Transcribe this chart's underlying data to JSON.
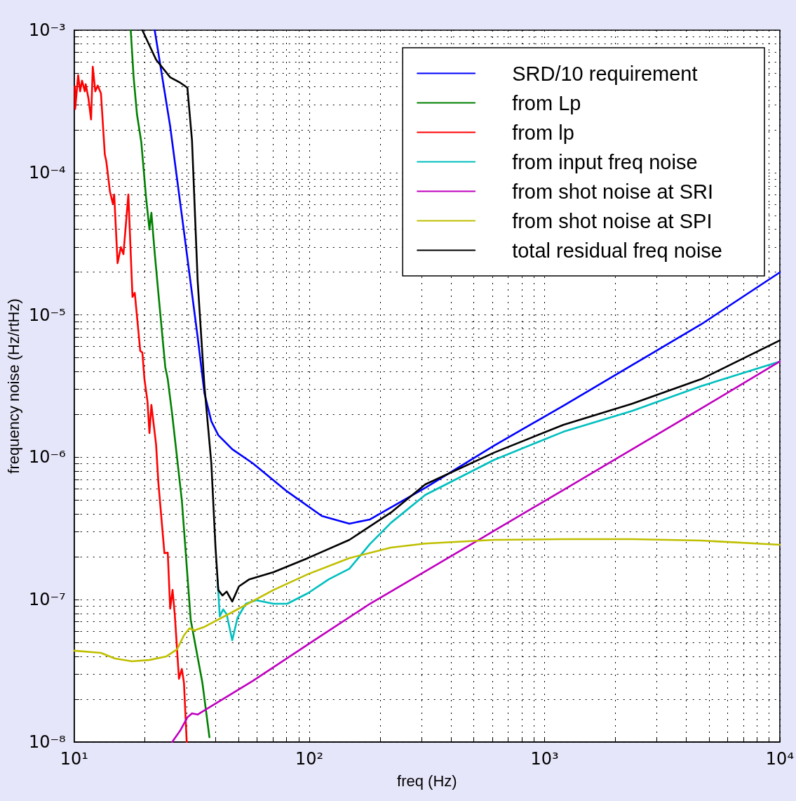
{
  "chart_data": {
    "type": "line",
    "xlabel": "freq (Hz)",
    "ylabel": "frequency noise (Hz/rtHz)",
    "log": "xy",
    "grid": true,
    "legend": "top right",
    "marker": "none",
    "line_style": "solid",
    "xlim": [
      10,
      10000
    ],
    "ylim": [
      1e-08,
      0.001
    ],
    "xticks": [
      {
        "value": 10,
        "label": "10¹"
      },
      {
        "value": 20,
        "label": null
      },
      {
        "value": 30,
        "label": null
      },
      {
        "value": 40,
        "label": null
      },
      {
        "value": 50,
        "label": null
      },
      {
        "value": 60,
        "label": null
      },
      {
        "value": 70,
        "label": null
      },
      {
        "value": 80,
        "label": null
      },
      {
        "value": 90,
        "label": null
      },
      {
        "value": 100,
        "label": "10²"
      },
      {
        "value": 200,
        "label": null
      },
      {
        "value": 300,
        "label": null
      },
      {
        "value": 400,
        "label": null
      },
      {
        "value": 500,
        "label": null
      },
      {
        "value": 600,
        "label": null
      },
      {
        "value": 700,
        "label": null
      },
      {
        "value": 800,
        "label": null
      },
      {
        "value": 900,
        "label": null
      },
      {
        "value": 1000,
        "label": "10³"
      },
      {
        "value": 2000,
        "label": null
      },
      {
        "value": 3000,
        "label": null
      },
      {
        "value": 4000,
        "label": null
      },
      {
        "value": 5000,
        "label": null
      },
      {
        "value": 6000,
        "label": null
      },
      {
        "value": 7000,
        "label": null
      },
      {
        "value": 8000,
        "label": null
      },
      {
        "value": 9000,
        "label": null
      },
      {
        "value": 10000,
        "label": "10⁴"
      }
    ],
    "yticks": [
      {
        "value": 1e-08,
        "label": "10⁻⁸"
      },
      {
        "value": 2e-08,
        "label": null
      },
      {
        "value": 3e-08,
        "label": null
      },
      {
        "value": 4e-08,
        "label": null
      },
      {
        "value": 5e-08,
        "label": null
      },
      {
        "value": 6e-08,
        "label": null
      },
      {
        "value": 7e-08,
        "label": null
      },
      {
        "value": 8e-08,
        "label": null
      },
      {
        "value": 9e-08,
        "label": null
      },
      {
        "value": 1e-07,
        "label": "10⁻⁷"
      },
      {
        "value": 2e-07,
        "label": null
      },
      {
        "value": 3e-07,
        "label": null
      },
      {
        "value": 4e-07,
        "label": null
      },
      {
        "value": 5e-07,
        "label": null
      },
      {
        "value": 6e-07,
        "label": null
      },
      {
        "value": 7e-07,
        "label": null
      },
      {
        "value": 8e-07,
        "label": null
      },
      {
        "value": 9e-07,
        "label": null
      },
      {
        "value": 1e-06,
        "label": "10⁻⁶"
      },
      {
        "value": 2e-06,
        "label": null
      },
      {
        "value": 3e-06,
        "label": null
      },
      {
        "value": 4e-06,
        "label": null
      },
      {
        "value": 5e-06,
        "label": null
      },
      {
        "value": 6e-06,
        "label": null
      },
      {
        "value": 7e-06,
        "label": null
      },
      {
        "value": 8e-06,
        "label": null
      },
      {
        "value": 9e-06,
        "label": null
      },
      {
        "value": 1e-05,
        "label": "10⁻⁵"
      },
      {
        "value": 2e-05,
        "label": null
      },
      {
        "value": 3e-05,
        "label": null
      },
      {
        "value": 4e-05,
        "label": null
      },
      {
        "value": 5e-05,
        "label": null
      },
      {
        "value": 6e-05,
        "label": null
      },
      {
        "value": 7e-05,
        "label": null
      },
      {
        "value": 8e-05,
        "label": null
      },
      {
        "value": 9e-05,
        "label": null
      },
      {
        "value": 0.0001,
        "label": "10⁻⁴"
      },
      {
        "value": 0.0002,
        "label": null
      },
      {
        "value": 0.0003,
        "label": null
      },
      {
        "value": 0.0004,
        "label": null
      },
      {
        "value": 0.0005,
        "label": null
      },
      {
        "value": 0.0006,
        "label": null
      },
      {
        "value": 0.0007,
        "label": null
      },
      {
        "value": 0.0008,
        "label": null
      },
      {
        "value": 0.0009,
        "label": null
      },
      {
        "value": 0.001,
        "label": "10⁻³"
      }
    ],
    "series": [
      {
        "name": "SRD/10 requirement",
        "color": "#0000ff",
        "x": [
          22.0,
          25.6,
          29.3,
          33.5,
          35.8,
          38.3,
          41.0,
          47.0,
          57.5,
          80.5,
          113,
          148,
          181,
          311,
          611,
          1200,
          2360,
          4630,
          10000
        ],
        "values": [
          0.001,
          0.000211,
          3.85e-05,
          7e-06,
          2.82e-06,
          1.79e-06,
          1.43e-06,
          1.14e-06,
          9.07e-07,
          5.75e-07,
          3.87e-07,
          3.42e-07,
          3.66e-07,
          6.1e-07,
          1.21e-06,
          2.3e-06,
          4.45e-06,
          8.59e-06,
          1.99e-05
        ]
      },
      {
        "name": "from Lp",
        "color": "#008000",
        "x": [
          17.4,
          17.9,
          18.5,
          19.3,
          20.2,
          20.9,
          21.3,
          22.0,
          22.8,
          24.4,
          25.0,
          26.1,
          28.7,
          31.3,
          35.1,
          37.6
        ],
        "values": [
          0.001,
          0.000467,
          0.000256,
          0.000163,
          6.78e-05,
          3.98e-05,
          5.22e-05,
          2.73e-05,
          1.43e-05,
          4.3e-06,
          3.54e-06,
          2.01e-06,
          4.97e-07,
          7.21e-08,
          2.6e-08,
          1.08e-08
        ]
      },
      {
        "name": "from lp",
        "color": "#ff0000",
        "x": [
          10.07,
          10.1,
          10.4,
          10.6,
          10.8,
          11.1,
          11.2,
          11.5,
          11.8,
          12.0,
          12.3,
          12.6,
          13.0,
          13.5,
          13.7,
          14.2,
          14.6,
          14.8,
          15.3,
          15.8,
          16.2,
          17.0,
          17.7,
          18.1,
          19.1,
          19.5,
          19.9,
          20.5,
          20.9,
          21.3,
          22.3,
          22.8,
          24.2,
          25.0,
          25.6,
          26.2,
          26.8,
          27.9,
          28.7,
          29.3,
          30.1
        ],
        "values": [
          0.000403,
          0.00028,
          0.000483,
          0.000372,
          0.000442,
          0.000372,
          0.000417,
          0.000332,
          0.000236,
          0.000554,
          0.000372,
          0.000408,
          0.00036,
          0.000134,
          0.00012,
          7.34e-05,
          6.05e-05,
          7.02e-05,
          2.31e-05,
          2.99e-05,
          2.67e-05,
          7.02e-05,
          1.34e-05,
          1.43e-05,
          5.58e-06,
          5.45e-06,
          3.54e-06,
          2.47e-06,
          1.48e-06,
          2.33e-06,
          1.23e-06,
          6.67e-07,
          2.12e-07,
          2.14e-07,
          8.65e-08,
          1.17e-07,
          7.73e-08,
          2.78e-08,
          3.26e-08,
          2.6e-08,
          1e-08
        ]
      },
      {
        "name": "from input freq noise",
        "color": "#00bfbf",
        "x": [
          40.7,
          41.6,
          43.0,
          44.5,
          47.0,
          49.5,
          53.7,
          59.4,
          70.4,
          80.5,
          98.6,
          121,
          148,
          181,
          222,
          311,
          611,
          1200,
          2360,
          4630,
          10000
        ],
        "values": [
          1.39e-07,
          7.63e-08,
          8.55e-08,
          7.89e-08,
          5.19e-08,
          7.46e-08,
          9.36e-08,
          9.9e-08,
          9.36e-08,
          9.36e-08,
          1.11e-07,
          1.39e-07,
          1.65e-07,
          2.46e-07,
          3.46e-07,
          5.44e-07,
          9.6e-07,
          1.51e-06,
          2.12e-06,
          3.16e-06,
          4.71e-06
        ]
      },
      {
        "name": "from shot noise at SRI",
        "color": "#bf00bf",
        "x": [
          26.1,
          28.3,
          30.3,
          31.7,
          33.5,
          35.8,
          57.5,
          113,
          181,
          311,
          611,
          1200,
          2360,
          4630,
          10000
        ],
        "values": [
          1e-08,
          1.21e-08,
          1.49e-08,
          1.59e-08,
          1.56e-08,
          1.67e-08,
          2.69e-08,
          5.62e-08,
          9.36e-08,
          1.58e-07,
          3.05e-07,
          5.89e-07,
          1.14e-06,
          2.2e-06,
          4.71e-06
        ]
      },
      {
        "name": "from shot noise at SPI",
        "color": "#bfbf00",
        "x": [
          10,
          13.0,
          14.9,
          17.6,
          20.9,
          24.7,
          27.4,
          29.3,
          30.9,
          32.4,
          35.8,
          47.0,
          70.4,
          98.6,
          148,
          222,
          311,
          611,
          1200,
          2360,
          4630,
          10000
        ],
        "values": [
          4.38e-08,
          4.23e-08,
          3.86e-08,
          3.69e-08,
          3.77e-08,
          4e-08,
          4.48e-08,
          5.62e-08,
          6.29e-08,
          6.08e-08,
          6.44e-08,
          8.17e-08,
          1.17e-07,
          1.51e-07,
          1.96e-07,
          2.32e-07,
          2.48e-07,
          2.63e-07,
          2.66e-07,
          2.66e-07,
          2.6e-07,
          2.43e-07
        ]
      },
      {
        "name": "total residual freq noise",
        "color": "#000000",
        "x": [
          19.5,
          22.3,
          25.6,
          28.3,
          30.3,
          31.7,
          33.5,
          35.8,
          38.3,
          39.9,
          41.0,
          42.7,
          44.5,
          47.0,
          50.2,
          55.6,
          70.4,
          98.6,
          148,
          222,
          311,
          611,
          1200,
          2360,
          4630,
          10000
        ],
        "values": [
          0.001,
          0.000621,
          0.000467,
          0.000427,
          0.000394,
          0.000168,
          1.74e-05,
          3.16e-06,
          9.07e-07,
          2.32e-07,
          1.17e-07,
          1.07e-07,
          1.14e-07,
          9.7e-08,
          1.24e-07,
          1.39e-07,
          1.56e-07,
          1.96e-07,
          2.63e-07,
          4.09e-07,
          6.45e-07,
          1.08e-06,
          1.69e-06,
          2.38e-06,
          3.54e-06,
          6.62e-06
        ]
      }
    ]
  }
}
